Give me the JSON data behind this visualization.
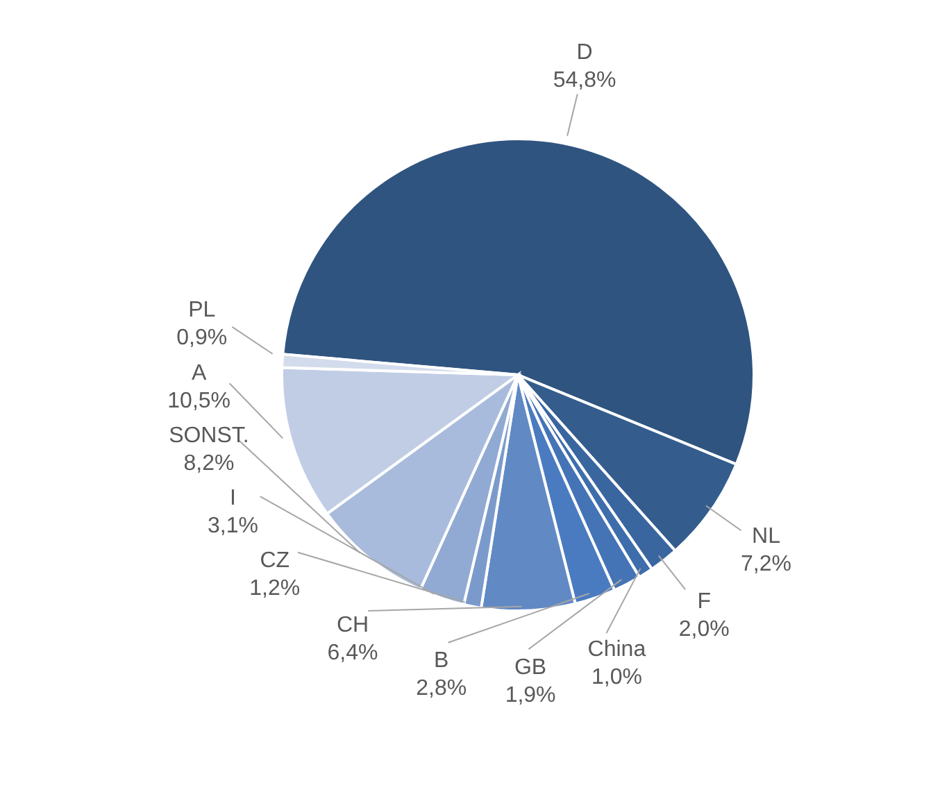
{
  "chart_data": {
    "type": "pie",
    "categories": [
      "D",
      "NL",
      "F",
      "China",
      "GB",
      "B",
      "CH",
      "CZ",
      "I",
      "SONST.",
      "A",
      "PL"
    ],
    "values": [
      54.8,
      7.2,
      2.0,
      1.0,
      1.9,
      2.8,
      6.4,
      1.2,
      3.1,
      8.2,
      10.5,
      0.9
    ],
    "value_labels": [
      "54,8%",
      "7,2%",
      "2,0%",
      "1,0%",
      "1,9%",
      "2,8%",
      "6,4%",
      "1,2%",
      "3,1%",
      "8,2%",
      "10,5%",
      "0,9%"
    ],
    "colors": [
      "#2f5480",
      "#345d8e",
      "#3a66a0",
      "#3e6dac",
      "#4473b6",
      "#4a7bc0",
      "#6189c4",
      "#7b9acc",
      "#91aad3",
      "#a9bbdc",
      "#c0cde5",
      "#d3dcec"
    ],
    "legend": false
  }
}
